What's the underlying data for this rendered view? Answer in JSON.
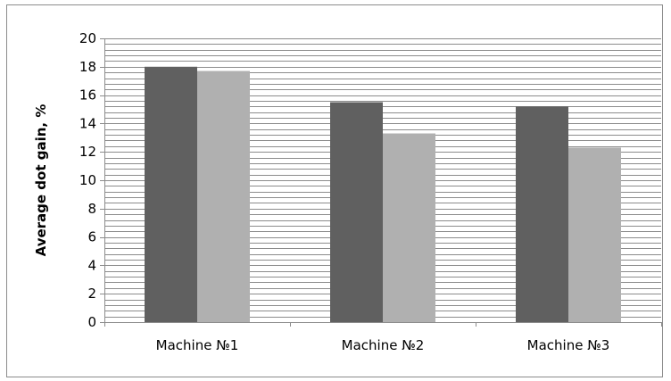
{
  "chart_data": {
    "type": "bar",
    "ylabel": "Average dot gain, %",
    "xlabel": "",
    "ylim": [
      0,
      20
    ],
    "y_ticks": [
      0,
      2,
      4,
      6,
      8,
      10,
      12,
      14,
      16,
      18,
      20
    ],
    "categories": [
      "Machine №1",
      "Machine №2",
      "Machine №3"
    ],
    "series": [
      {
        "values": [
          18.0,
          15.5,
          15.2
        ],
        "color": "#606060"
      },
      {
        "values": [
          17.7,
          13.3,
          12.3
        ],
        "color": "#b0b0b0"
      }
    ],
    "grid": true,
    "minor_gridlines_per_major": 4,
    "gridline_color": "#8c8c8c",
    "legend": "none"
  }
}
